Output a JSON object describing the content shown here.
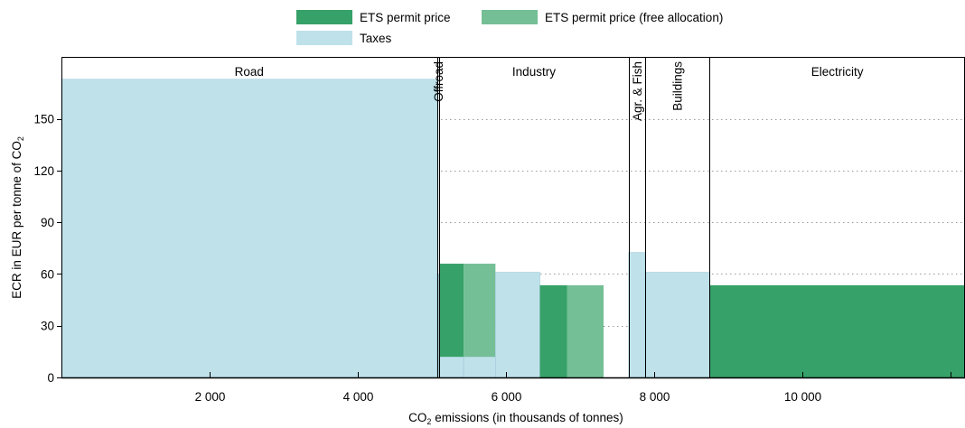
{
  "chart_data": {
    "type": "bar",
    "subtype": "variable-width stacked bars (effective carbon rates by sector)",
    "xlabel_prefix": "CO",
    "xlabel_sub": "2",
    "xlabel_suffix": " emissions (in thousands of tonnes)",
    "ylabel_prefix": "ECR in EUR per tonne of CO",
    "ylabel_sub": "2",
    "xlim": [
      0,
      12200
    ],
    "ylim": [
      0,
      186
    ],
    "grid": "horizontal dotted",
    "legend_placement": "top-center",
    "x_ticks": [
      {
        "value": 2000,
        "label": "2 000"
      },
      {
        "value": 4000,
        "label": "4 000"
      },
      {
        "value": 6000,
        "label": "6 000"
      },
      {
        "value": 8000,
        "label": "8 000"
      },
      {
        "value": 10000,
        "label": "10 000"
      },
      {
        "value": 12000,
        "label": ""
      }
    ],
    "y_ticks": [
      {
        "value": 0,
        "label": "0"
      },
      {
        "value": 30,
        "label": "30"
      },
      {
        "value": 60,
        "label": "60"
      },
      {
        "value": 90,
        "label": "90"
      },
      {
        "value": 120,
        "label": "120"
      },
      {
        "value": 150,
        "label": "150"
      }
    ],
    "legend": [
      {
        "key": "ets",
        "label": "ETS permit price",
        "color": "#36a168"
      },
      {
        "key": "ets_free",
        "label": "ETS permit price (free allocation)",
        "color": "#74bf96"
      },
      {
        "key": "taxes",
        "label": "Taxes",
        "color": "#bfe1ea"
      }
    ],
    "colors": {
      "ets": "#36a168",
      "ets_free": "#74bf96",
      "taxes": "#bfe1ea",
      "taxes_edge": "#9cc9d6"
    },
    "sectors": [
      {
        "label": "Road",
        "start": 0,
        "end": 5070,
        "orientation": "horizontal"
      },
      {
        "label": "Offroad",
        "start": 5070,
        "end": 5100,
        "orientation": "vertical"
      },
      {
        "label": "Industry",
        "start": 5100,
        "end": 7660,
        "orientation": "horizontal"
      },
      {
        "label": "Agr. & Fish",
        "start": 7660,
        "end": 7880,
        "orientation": "vertical"
      },
      {
        "label": "Buildings",
        "start": 7880,
        "end": 8750,
        "orientation": "vertical"
      },
      {
        "label": "Electricity",
        "start": 8750,
        "end": 12200,
        "orientation": "horizontal"
      }
    ],
    "bars": [
      {
        "x0": 0,
        "x1": 5070,
        "segments": [
          {
            "type": "taxes",
            "y0": 0,
            "y1": 173
          }
        ]
      },
      {
        "x0": 5070,
        "x1": 5100,
        "segments": [
          {
            "type": "taxes",
            "y0": 0,
            "y1": 60
          }
        ]
      },
      {
        "x0": 5100,
        "x1": 5430,
        "segments": [
          {
            "type": "taxes",
            "y0": 0,
            "y1": 12
          },
          {
            "type": "ets",
            "y0": 12,
            "y1": 66
          }
        ]
      },
      {
        "x0": 5430,
        "x1": 5860,
        "segments": [
          {
            "type": "taxes",
            "y0": 0,
            "y1": 12
          },
          {
            "type": "ets_free",
            "y0": 12,
            "y1": 66
          }
        ]
      },
      {
        "x0": 5860,
        "x1": 6460,
        "segments": [
          {
            "type": "taxes",
            "y0": 0,
            "y1": 61
          }
        ]
      },
      {
        "x0": 6460,
        "x1": 6830,
        "segments": [
          {
            "type": "ets",
            "y0": 0,
            "y1": 53.5
          }
        ]
      },
      {
        "x0": 6830,
        "x1": 7320,
        "segments": [
          {
            "type": "ets_free",
            "y0": 0,
            "y1": 53.5
          }
        ]
      },
      {
        "x0": 7660,
        "x1": 7880,
        "segments": [
          {
            "type": "taxes",
            "y0": 0,
            "y1": 72.5
          }
        ]
      },
      {
        "x0": 7880,
        "x1": 8750,
        "segments": [
          {
            "type": "taxes",
            "y0": 0,
            "y1": 61
          }
        ]
      },
      {
        "x0": 8750,
        "x1": 12200,
        "segments": [
          {
            "type": "ets",
            "y0": 0,
            "y1": 53.5
          }
        ]
      }
    ]
  }
}
